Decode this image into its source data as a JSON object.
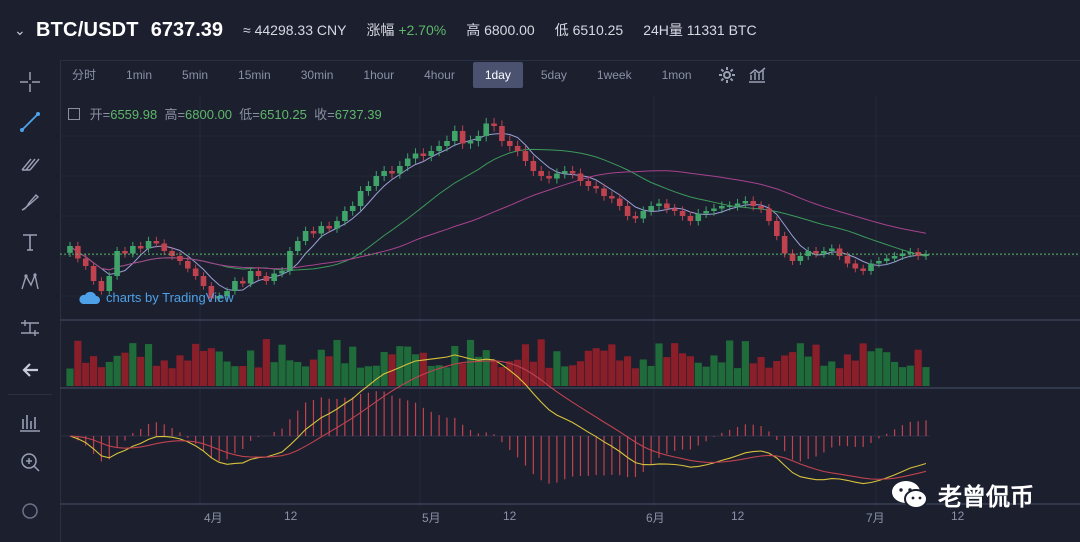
{
  "header": {
    "pair": "BTC/USDT",
    "price": "6737.39",
    "cny": "≈ 44298.33 CNY",
    "change_label": "涨幅",
    "change_value": "+2.70%",
    "high_label": "高",
    "high_value": "6800.00",
    "low_label": "低",
    "low_value": "6510.25",
    "vol_label": "24H量",
    "vol_value": "11331 BTC"
  },
  "intervals": [
    "分时",
    "1min",
    "5min",
    "15min",
    "30min",
    "1hour",
    "4hour",
    "1day",
    "5day",
    "1week",
    "1mon"
  ],
  "active_interval": "1day",
  "ohlc": {
    "open_label": "开=",
    "open": "6559.98",
    "high_label": "高=",
    "high": "6800.00",
    "low_label": "低=",
    "low": "6510.25",
    "close_label": "收=",
    "close": "6737.39"
  },
  "brand": "charts by TradingView",
  "watermark": "老曾侃币",
  "x_axis_labels": [
    "4月",
    "12",
    "5月",
    "12",
    "6月",
    "12",
    "7月",
    "12"
  ],
  "colors": {
    "up": "#3fa36a",
    "down": "#c0424f",
    "bg": "#1b1f2e",
    "accent": "#4ea1e8"
  },
  "icons": [
    "crosshair-icon",
    "trendline-icon",
    "fork-icon",
    "brush-icon",
    "text-icon",
    "pattern-icon",
    "measure-icon",
    "back-arrow-icon",
    "indicators-icon",
    "zoom-icon",
    "settings-icon",
    "chart-type-icon"
  ],
  "chart_data": {
    "type": "candlestick",
    "closes": [
      6900,
      6650,
      6500,
      6200,
      6000,
      6300,
      6800,
      6750,
      6900,
      6850,
      7000,
      6950,
      6800,
      6700,
      6600,
      6450,
      6300,
      6100,
      5850,
      5900,
      6000,
      6200,
      6150,
      6400,
      6300,
      6200,
      6350,
      6400,
      6800,
      7000,
      7200,
      7150,
      7300,
      7250,
      7400,
      7600,
      7700,
      8000,
      8100,
      8300,
      8400,
      8350,
      8500,
      8650,
      8750,
      8700,
      8800,
      8900,
      9000,
      9200,
      8950,
      9000,
      9100,
      9350,
      9300,
      9000,
      8900,
      8800,
      8600,
      8400,
      8300,
      8250,
      8350,
      8400,
      8350,
      8200,
      8100,
      8050,
      7900,
      7850,
      7700,
      7500,
      7450,
      7600,
      7700,
      7750,
      7650,
      7600,
      7500,
      7400,
      7550,
      7600,
      7650,
      7700,
      7700,
      7750,
      7800,
      7700,
      7650,
      7400,
      7100,
      6750,
      6600,
      6700,
      6800,
      6750,
      6800,
      6850,
      6700,
      6550,
      6450,
      6400,
      6550,
      6600,
      6650,
      6700,
      6750,
      6780,
      6700,
      6737
    ]
  }
}
